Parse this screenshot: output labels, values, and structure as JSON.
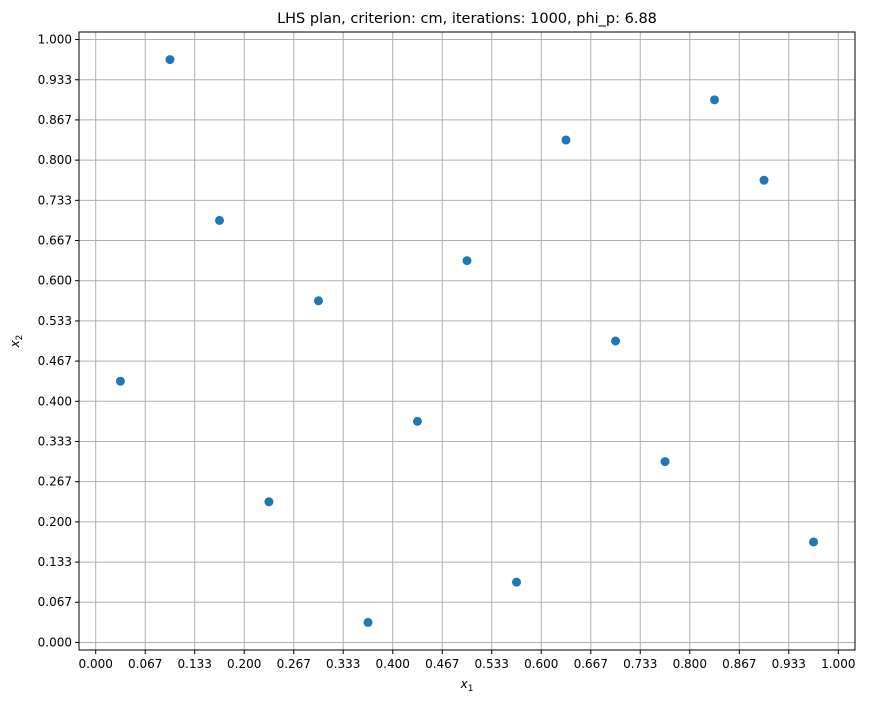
{
  "chart_data": {
    "type": "scatter",
    "title": "LHS plan, criterion: cm, iterations: 1000, phi_p: 6.88",
    "xlabel": "x",
    "xlabel_sub": "1",
    "ylabel": "x",
    "ylabel_sub": "2",
    "xlim": [
      -0.0225,
      1.0225
    ],
    "ylim": [
      -0.0125,
      1.0125
    ],
    "grid": true,
    "marker_color": "#1f77b4",
    "x_ticks": [
      0.0,
      0.0667,
      0.1333,
      0.2,
      0.2667,
      0.3333,
      0.4,
      0.4667,
      0.5333,
      0.6,
      0.6667,
      0.7333,
      0.8,
      0.8667,
      0.9333,
      1.0
    ],
    "x_tick_labels": [
      "0.000",
      "0.067",
      "0.133",
      "0.200",
      "0.267",
      "0.333",
      "0.400",
      "0.467",
      "0.533",
      "0.600",
      "0.667",
      "0.733",
      "0.800",
      "0.867",
      "0.933",
      "1.000"
    ],
    "y_ticks": [
      0.0,
      0.0667,
      0.1333,
      0.2,
      0.2667,
      0.3333,
      0.4,
      0.4667,
      0.5333,
      0.6,
      0.6667,
      0.7333,
      0.8,
      0.8667,
      0.9333,
      1.0
    ],
    "y_tick_labels": [
      "0.000",
      "0.067",
      "0.133",
      "0.200",
      "0.267",
      "0.333",
      "0.400",
      "0.467",
      "0.533",
      "0.600",
      "0.667",
      "0.733",
      "0.800",
      "0.867",
      "0.933",
      "1.000"
    ],
    "points": [
      {
        "x": 0.0333,
        "y": 0.4333
      },
      {
        "x": 0.1,
        "y": 0.9667
      },
      {
        "x": 0.1667,
        "y": 0.7
      },
      {
        "x": 0.2333,
        "y": 0.2333
      },
      {
        "x": 0.3,
        "y": 0.5667
      },
      {
        "x": 0.3667,
        "y": 0.0333
      },
      {
        "x": 0.4333,
        "y": 0.3667
      },
      {
        "x": 0.5,
        "y": 0.6333
      },
      {
        "x": 0.5667,
        "y": 0.1
      },
      {
        "x": 0.6333,
        "y": 0.8333
      },
      {
        "x": 0.7,
        "y": 0.5
      },
      {
        "x": 0.7667,
        "y": 0.3
      },
      {
        "x": 0.8333,
        "y": 0.9
      },
      {
        "x": 0.9,
        "y": 0.7667
      },
      {
        "x": 0.9667,
        "y": 0.1667
      }
    ]
  }
}
